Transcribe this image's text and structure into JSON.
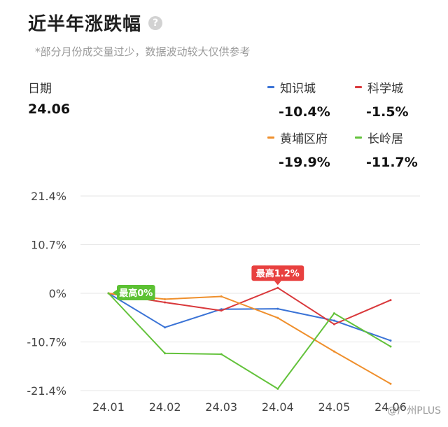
{
  "header": {
    "title": "近半年涨跌幅",
    "help_icon": "?",
    "subtitle": "*部分月份成交量过少，数据波动较大仅供参考"
  },
  "date": {
    "label": "日期",
    "value": "24.06"
  },
  "legend": [
    {
      "name": "知识城",
      "value": "-10.4%",
      "color": "#3a73d6"
    },
    {
      "name": "科学城",
      "value": "-1.5%",
      "color": "#d9383b"
    },
    {
      "name": "黄埔区府",
      "value": "-19.9%",
      "color": "#ef8f2c"
    },
    {
      "name": "长岭居",
      "value": "-11.7%",
      "color": "#63c23b"
    }
  ],
  "watermark": "@广州PLUS",
  "chart_data": {
    "type": "line",
    "x": [
      "24.01",
      "24.02",
      "24.03",
      "24.04",
      "24.05",
      "24.06"
    ],
    "ylim": [
      -21.4,
      21.4
    ],
    "yticks": [
      "21.4%",
      "10.7%",
      "0%",
      "-10.7%",
      "-21.4%"
    ],
    "ytick_values": [
      21.4,
      10.7,
      0,
      -10.7,
      -21.4
    ],
    "grid": true,
    "series": [
      {
        "name": "知识城",
        "color": "#3a73d6",
        "values": [
          0,
          -7.5,
          -3.5,
          -3.4,
          -6.0,
          -10.4
        ]
      },
      {
        "name": "科学城",
        "color": "#d9383b",
        "values": [
          0,
          -2.0,
          -3.8,
          1.2,
          -6.8,
          -1.5
        ]
      },
      {
        "name": "黄埔区府",
        "color": "#ef8f2c",
        "values": [
          0,
          -1.3,
          -0.7,
          -5.4,
          -12.8,
          -19.9
        ]
      },
      {
        "name": "长岭居",
        "color": "#63c23b",
        "values": [
          0,
          -13.2,
          -13.4,
          -21.0,
          -4.4,
          -11.7
        ]
      }
    ],
    "annotations": [
      {
        "text": "最高0%",
        "series": "长岭居",
        "x": "24.01",
        "y": 0,
        "color": "#5cc133"
      },
      {
        "text": "最高1.2%",
        "series": "科学城",
        "x": "24.04",
        "y": 1.2,
        "color": "#e8403f"
      }
    ]
  }
}
